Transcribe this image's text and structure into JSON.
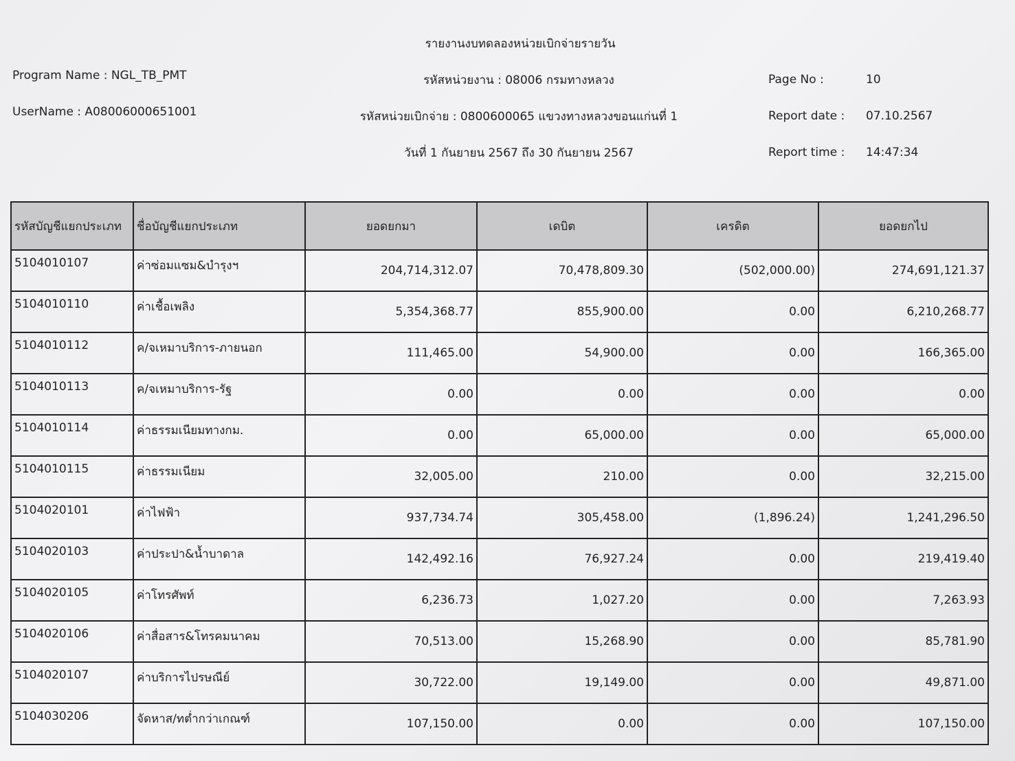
{
  "header": {
    "title": "รายงานงบทดลองหน่วยเบิกจ่ายรายวัน",
    "program_name": "Program Name : NGL_TB_PMT",
    "username": "UserName : A08006000651001",
    "agency": "รหัสหน่วยงาน : 08006 กรมทางหลวง",
    "disbursing_unit": "รหัสหน่วยเบิกจ่าย : 0800600065 แขวงทางหลวงขอนแก่นที่ 1",
    "period": "วันที่ 1 กันยายน 2567 ถึง 30 กันยายน 2567",
    "page_no_label": "Page No :",
    "page_no": "10",
    "report_date_label": "Report date :",
    "report_date": "07.10.2567",
    "report_time_label": "Report time :",
    "report_time": "14:47:34"
  },
  "table": {
    "columns": [
      "รหัสบัญชีแยกประเภท",
      "ชื่อบัญชีแยกประเภท",
      "ยอดยกมา",
      "เดบิต",
      "เครดิต",
      "ยอดยกไป"
    ],
    "rows": [
      [
        "5104010107",
        "ค่าซ่อมแซม&บำรุงฯ",
        "204,714,312.07",
        "70,478,809.30",
        "(502,000.00)",
        "274,691,121.37"
      ],
      [
        "5104010110",
        "ค่าเชื้อเพลิง",
        "5,354,368.77",
        "855,900.00",
        "0.00",
        "6,210,268.77"
      ],
      [
        "5104010112",
        "ค/จเหมาบริการ-ภายนอก",
        "111,465.00",
        "54,900.00",
        "0.00",
        "166,365.00"
      ],
      [
        "5104010113",
        "ค/จเหมาบริการ-รัฐ",
        "0.00",
        "0.00",
        "0.00",
        "0.00"
      ],
      [
        "5104010114",
        "ค่าธรรมเนียมทางกม.",
        "0.00",
        "65,000.00",
        "0.00",
        "65,000.00"
      ],
      [
        "5104010115",
        "ค่าธรรมเนียม",
        "32,005.00",
        "210.00",
        "0.00",
        "32,215.00"
      ],
      [
        "5104020101",
        "ค่าไฟฟ้า",
        "937,734.74",
        "305,458.00",
        "(1,896.24)",
        "1,241,296.50"
      ],
      [
        "5104020103",
        "ค่าประปา&น้ำบาดาล",
        "142,492.16",
        "76,927.24",
        "0.00",
        "219,419.40"
      ],
      [
        "5104020105",
        "ค่าโทรศัพท์",
        "6,236.73",
        "1,027.20",
        "0.00",
        "7,263.93"
      ],
      [
        "5104020106",
        "ค่าสื่อสาร&โทรคมนาคม",
        "70,513.00",
        "15,268.90",
        "0.00",
        "85,781.90"
      ],
      [
        "5104020107",
        "ค่าบริการไปรษณีย์",
        "30,722.00",
        "19,149.00",
        "0.00",
        "49,871.00"
      ],
      [
        "5104030206",
        "จัดหาส/ทต่ำกว่าเกณฑ์",
        "107,150.00",
        "0.00",
        "0.00",
        "107,150.00"
      ]
    ]
  }
}
